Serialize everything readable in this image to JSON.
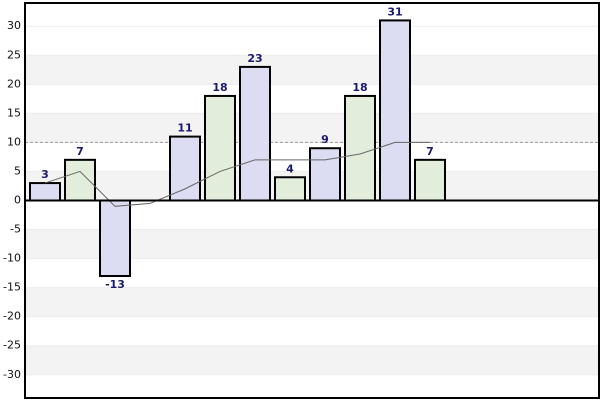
{
  "chart_data": {
    "type": "bar",
    "series": [
      {
        "type": "bar",
        "colors": [
          "#dcdcf2",
          "#e2eedb"
        ],
        "values": [
          3,
          7,
          -13,
          null,
          11,
          18,
          23,
          4,
          9,
          18,
          31,
          7
        ]
      },
      {
        "type": "line",
        "color": "#666666",
        "values": [
          3,
          5,
          -1,
          -0.5,
          2,
          5,
          7,
          7,
          7,
          8,
          10,
          10
        ]
      }
    ],
    "reference_line": 10,
    "ylim": [
      -34,
      34
    ],
    "yticks": [
      -30,
      -25,
      -20,
      -15,
      -10,
      -5,
      0,
      5,
      10,
      15,
      20,
      25,
      30
    ],
    "grid": true
  }
}
